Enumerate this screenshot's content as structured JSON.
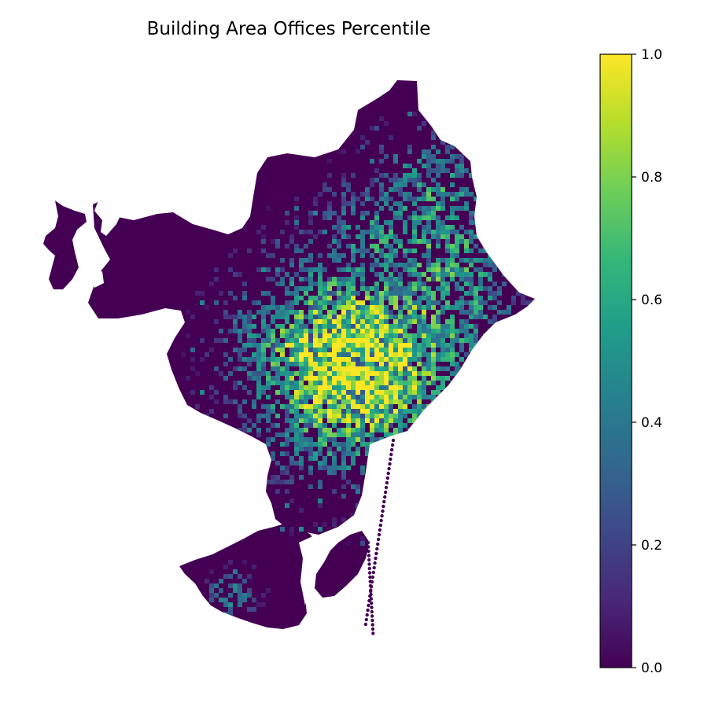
{
  "title": "Building Area Offices Percentile",
  "colormap": "viridis",
  "colormap_stops": [
    "#440154",
    "#482878",
    "#3e4989",
    "#31688e",
    "#26828e",
    "#1f9e89",
    "#35b779",
    "#6ece58",
    "#b5de2b",
    "#fde725"
  ],
  "background_color": "#ffffff",
  "land_base_color": "#440154",
  "colorbar": {
    "min": 0.0,
    "max": 1.0,
    "ticks": [
      "0.0",
      "0.2",
      "0.4",
      "0.6",
      "0.8",
      "1.0"
    ]
  },
  "chart_data": {
    "type": "heatmap",
    "title": "Building Area Offices Percentile",
    "value_range": [
      0.0,
      1.0
    ],
    "description_of_values": "Hexagonal grid cells over a coastal city; most cells are 0.0 (dark purple); high values (0.6–1.0, green to yellow) concentrate in the central area, with the highest (yellow ~1.0) at the core."
  }
}
